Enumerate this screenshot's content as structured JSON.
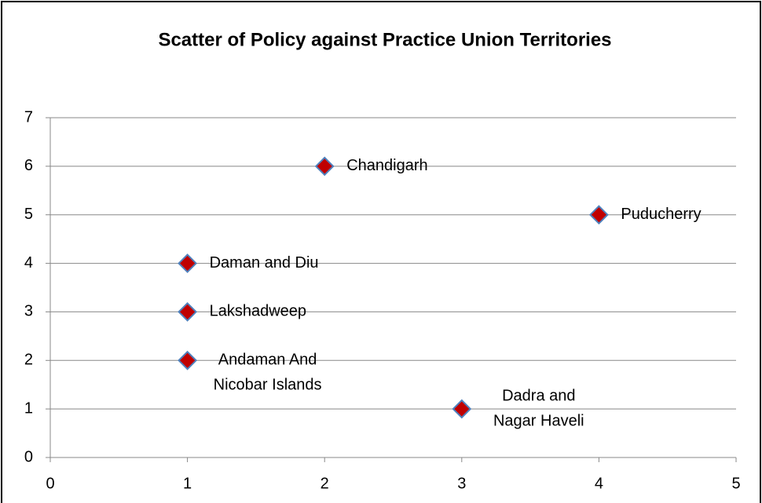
{
  "chart_data": {
    "type": "scatter",
    "title": "Scatter of Policy against Practice Union Territories",
    "x": [
      2,
      4,
      1,
      1,
      1,
      3
    ],
    "series": [
      {
        "color": "#c00000",
        "values": [
          6,
          5,
          4,
          3,
          2,
          1
        ]
      }
    ],
    "labels": [
      [
        "Chandigarh"
      ],
      [
        "Puducherry"
      ],
      [
        "Daman and Diu"
      ],
      [
        "Lakshadweep"
      ],
      [
        "Andaman And",
        "Nicobar Islands"
      ],
      [
        "Dadra and",
        "Nagar Haveli"
      ]
    ],
    "xlim": [
      0,
      5
    ],
    "ylim": [
      0,
      7
    ],
    "xticks": [
      0,
      1,
      2,
      3,
      4,
      5
    ],
    "yticks": [
      0,
      1,
      2,
      3,
      4,
      5,
      6,
      7
    ],
    "grid": true
  }
}
